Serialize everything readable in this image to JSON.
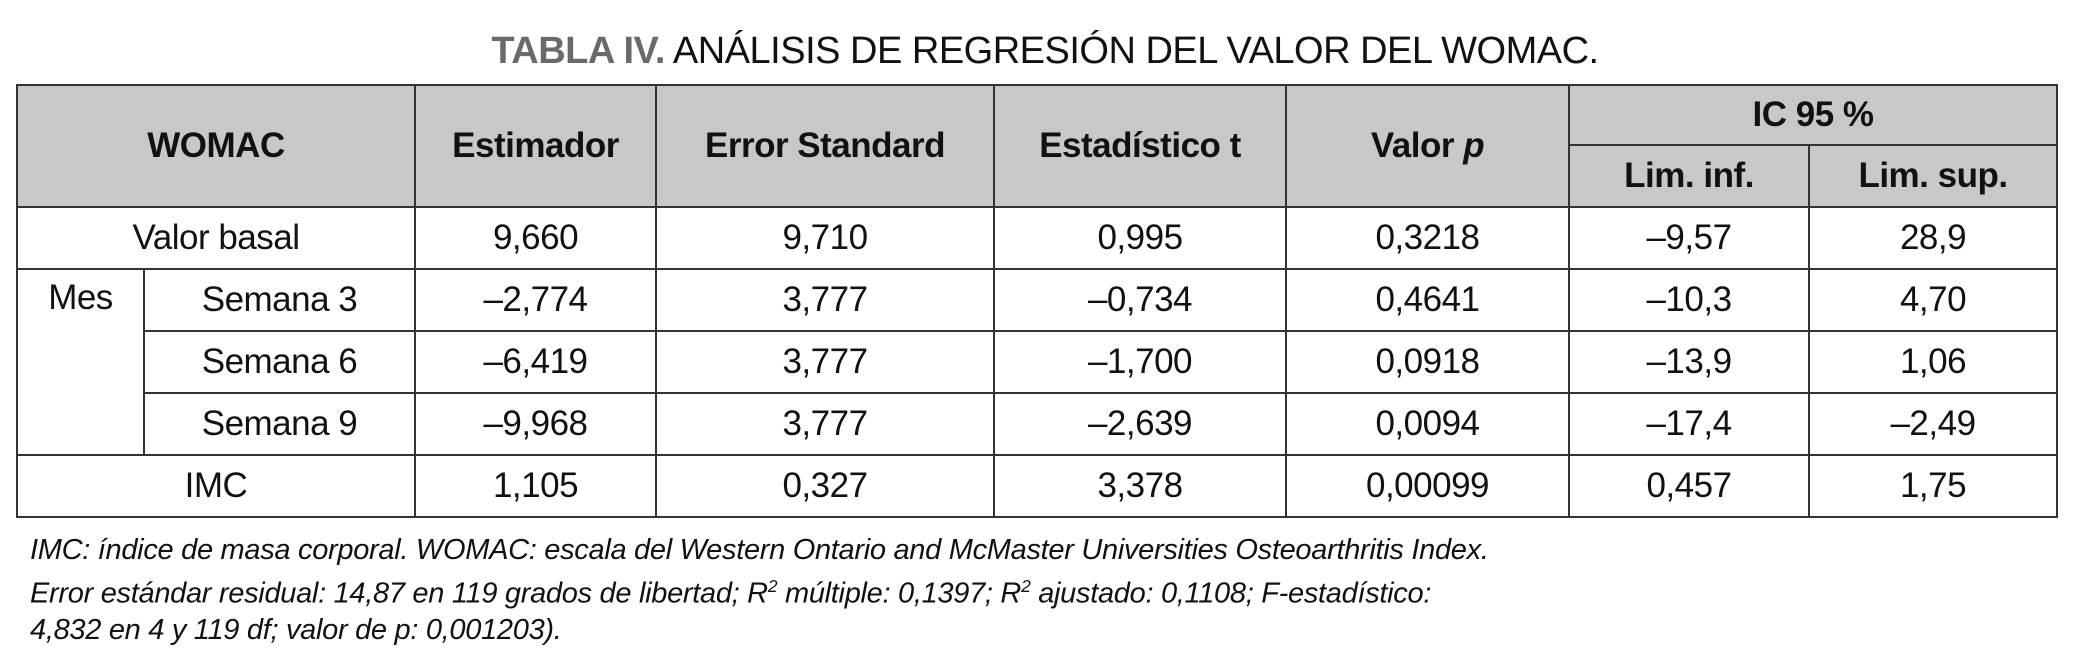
{
  "title": {
    "label": "TABLA IV.",
    "text": "ANÁLISIS DE REGRESIÓN DEL VALOR DEL WOMAC."
  },
  "header": {
    "womac": "WOMAC",
    "estimador": "Estimador",
    "error": "Error Standard",
    "t": "Estadístico t",
    "p_label": "Valor ",
    "p_italic": "p",
    "ic": "IC 95 %",
    "inf": "Lim. inf.",
    "sup": "Lim. sup."
  },
  "group_label": "Mes",
  "rows": [
    {
      "label": "Valor basal",
      "values": [
        "9,660",
        "9,710",
        "0,995",
        "0,3218",
        "–9,57",
        "28,9"
      ]
    },
    {
      "label": "Semana 3",
      "values": [
        "–2,774",
        "3,777",
        "–0,734",
        "0,4641",
        "–10,3",
        "4,70"
      ]
    },
    {
      "label": "Semana 6",
      "values": [
        "–6,419",
        "3,777",
        "–1,700",
        "0,0918",
        "–13,9",
        "1,06"
      ]
    },
    {
      "label": "Semana 9",
      "values": [
        "–9,968",
        "3,777",
        "–2,639",
        "0,0094",
        "–17,4",
        "–2,49"
      ]
    },
    {
      "label": "IMC",
      "values": [
        "1,105",
        "0,327",
        "3,378",
        "0,00099",
        "0,457",
        "1,75"
      ]
    }
  ],
  "notes": {
    "line1": "IMC: índice de masa corporal. WOMAC: escala del Western Ontario and McMaster Universities Osteoarthritis Index.",
    "line2a": "Error estándar residual: 14,87 en 119 grados de libertad; R",
    "sup": "2",
    "line2b": " múltiple: 0,1397; R",
    "line2c": " ajustado: 0,1108; F-estadístico:",
    "line3": "4,832 en 4 y 119 df; valor de p: 0,001203)."
  }
}
